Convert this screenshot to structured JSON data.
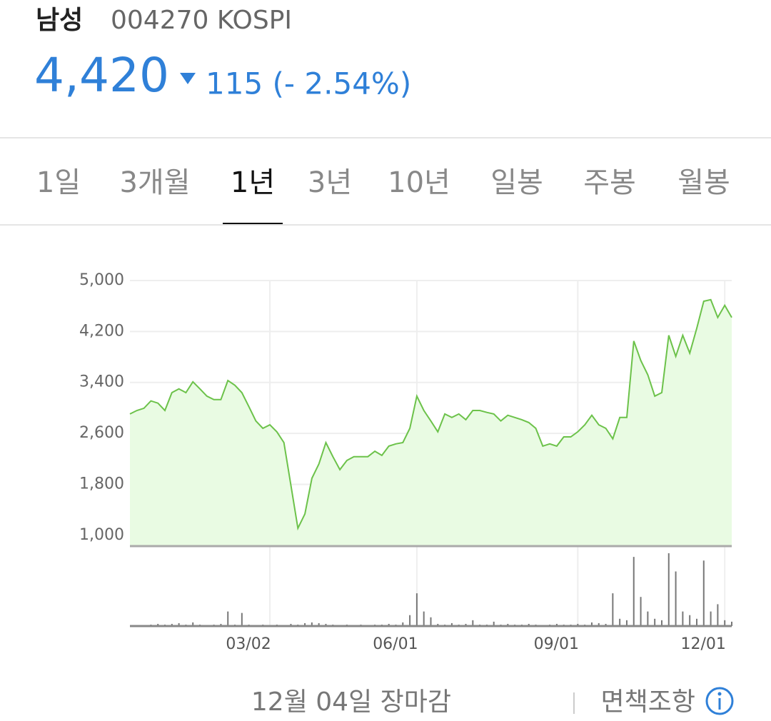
{
  "header": {
    "name": "남성",
    "code": "004270 KOSPI",
    "price": "4,420",
    "change": "115 (- 2.54%)"
  },
  "tabs": [
    "1일",
    "3개월",
    "1년",
    "3년",
    "10년",
    "일봉",
    "주봉",
    "월봉"
  ],
  "selected_tab": 2,
  "chart_data": {
    "type": "line",
    "series": [
      {
        "name": "남성",
        "color": "#6cc24a",
        "values": [
          2905,
          2960,
          2995,
          3110,
          3075,
          2960,
          3240,
          3300,
          3240,
          3410,
          3300,
          3185,
          3130,
          3130,
          3430,
          3355,
          3240,
          3020,
          2795,
          2680,
          2735,
          2625,
          2455,
          1785,
          1110,
          1335,
          1895,
          2120,
          2455,
          2235,
          2030,
          2175,
          2235,
          2235,
          2235,
          2320,
          2255,
          2400,
          2435,
          2455,
          2680,
          3185,
          2960,
          2795,
          2625,
          2905,
          2850,
          2905,
          2815,
          2960,
          2960,
          2930,
          2905,
          2795,
          2885,
          2850,
          2815,
          2770,
          2680,
          2400,
          2435,
          2400,
          2545,
          2545,
          2625,
          2735,
          2885,
          2735,
          2680,
          2515,
          2850,
          2850,
          4050,
          3745,
          3520,
          3185,
          3240,
          4140,
          3810,
          4140,
          3860,
          4250,
          4675,
          4700,
          4420,
          4610,
          4420
        ]
      }
    ],
    "volume": {
      "color": "#777777",
      "ylim": [
        0,
        100
      ],
      "values": [
        0,
        1,
        0,
        2,
        3,
        2,
        3,
        4,
        2,
        5,
        2,
        1,
        2,
        3,
        20,
        2,
        18,
        2,
        1,
        2,
        1,
        2,
        1,
        3,
        2,
        4,
        5,
        4,
        3,
        2,
        1,
        2,
        1,
        2,
        1,
        2,
        2,
        3,
        2,
        5,
        15,
        45,
        20,
        12,
        3,
        2,
        4,
        2,
        3,
        8,
        2,
        2,
        6,
        2,
        3,
        2,
        2,
        3,
        2,
        1,
        2,
        3,
        2,
        2,
        3,
        2,
        5,
        4,
        3,
        45,
        10,
        8,
        95,
        40,
        20,
        10,
        8,
        100,
        75,
        20,
        15,
        10,
        90,
        20,
        30,
        8,
        6
      ]
    },
    "ylim": [
      830,
      5000
    ],
    "yticks": [
      {
        "value": 5000,
        "label": "5,000"
      },
      {
        "value": 4200,
        "label": "4,200"
      },
      {
        "value": 3400,
        "label": "3,400"
      },
      {
        "value": 2600,
        "label": "2,600"
      },
      {
        "value": 1800,
        "label": "1,800"
      },
      {
        "value": 1000,
        "label": "1,000"
      }
    ],
    "xlim": [
      0,
      86
    ],
    "xticks": [
      {
        "value": 20,
        "label": "03/02"
      },
      {
        "value": 41,
        "label": "06/01"
      },
      {
        "value": 64,
        "label": "09/01"
      },
      {
        "value": 85,
        "label": "12/01"
      }
    ],
    "grid": true
  },
  "footer": {
    "status": "12월 04일 장마감",
    "disclaimer": "면책조항"
  }
}
